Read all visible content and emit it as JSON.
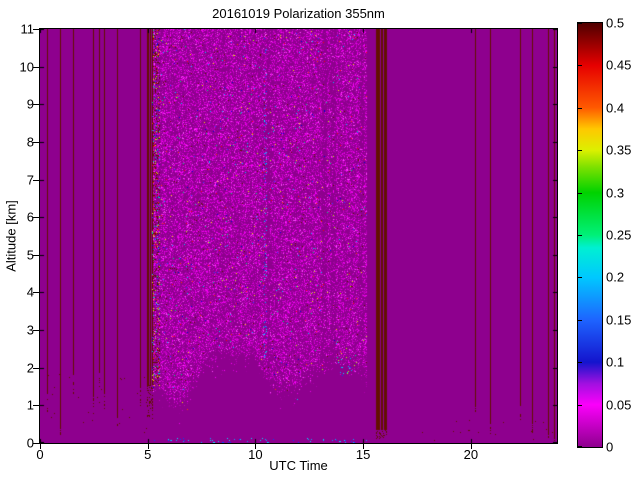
{
  "colors": {
    "figure_bg": "#ffffff",
    "text": "#000000",
    "axis": "#000000",
    "plot_bg": "#8e008e",
    "stripe": "#621000",
    "noise_magentas": [
      "#9b009b",
      "#ad00ad",
      "#c000c0",
      "#d400d4",
      "#e800e8",
      "#fc00fc",
      "#ff4cff"
    ],
    "bright_dots": [
      "#00c8ff",
      "#2244ff",
      "#0000dc",
      "#00e080",
      "#b4ff00",
      "#ffe000",
      "#ff3c00",
      "#ff0000"
    ],
    "blue_dots": [
      "#0044ff",
      "#00aaff",
      "#00e0ff"
    ]
  },
  "chart_data": {
    "type": "heatmap",
    "title": "20161019 Polarization 355nm",
    "xlabel": "UTC Time",
    "ylabel": "Altitude [km]",
    "x_axis": {
      "range": [
        0,
        24
      ],
      "ticks": [
        0,
        5,
        10,
        15,
        20
      ]
    },
    "y_axis": {
      "range": [
        0,
        11
      ],
      "ticks": [
        0,
        1,
        2,
        3,
        4,
        5,
        6,
        7,
        8,
        9,
        10,
        11
      ]
    },
    "colorbar": {
      "range": [
        0,
        0.5
      ],
      "tick_values": [
        0,
        0.05,
        0.1,
        0.15,
        0.2,
        0.25,
        0.3,
        0.35,
        0.4,
        0.45,
        0.5
      ],
      "tick_labels": [
        "0",
        "0.05",
        "0.1",
        "0.15",
        "0.2",
        "0.25",
        "0.3",
        "0.35",
        "0.4",
        "0.45",
        "0.5"
      ],
      "stops": [
        {
          "v": 0.0,
          "c": "#8e008e"
        },
        {
          "v": 0.05,
          "c": "#fb00fb"
        },
        {
          "v": 0.075,
          "c": "#a010e0"
        },
        {
          "v": 0.1,
          "c": "#1414cd"
        },
        {
          "v": 0.15,
          "c": "#1e64ff"
        },
        {
          "v": 0.2,
          "c": "#00c8ff"
        },
        {
          "v": 0.235,
          "c": "#00f0d2"
        },
        {
          "v": 0.25,
          "c": "#00f078"
        },
        {
          "v": 0.3,
          "c": "#00d200"
        },
        {
          "v": 0.33,
          "c": "#7de100"
        },
        {
          "v": 0.35,
          "c": "#dcf000"
        },
        {
          "v": 0.375,
          "c": "#ffc800"
        },
        {
          "v": 0.4,
          "c": "#ff5a00"
        },
        {
          "v": 0.45,
          "c": "#e60000"
        },
        {
          "v": 0.5,
          "c": "#500000"
        }
      ]
    },
    "background_value": 0,
    "seed": 1337,
    "features": {
      "stripes": [
        {
          "t": 0.33,
          "bottom": 1.3,
          "tail": 0.5
        },
        {
          "t": 0.95,
          "bottom": 0.45,
          "tail": 0.3
        },
        {
          "t": 1.52,
          "bottom": 1.8,
          "tail": 0.6
        },
        {
          "t": 2.45,
          "bottom": 1.25,
          "tail": 0.5
        },
        {
          "t": 2.72,
          "bottom": 1.85,
          "tail": 0.4
        },
        {
          "t": 2.97,
          "bottom": 1.3,
          "tail": 0.4
        },
        {
          "t": 3.56,
          "bottom": 0.7,
          "tail": 0.3
        },
        {
          "t": 4.62,
          "bottom": 1.45,
          "tail": 0.5
        },
        {
          "t": 20.2,
          "bottom": 0.95,
          "tail": 0.3
        },
        {
          "t": 20.9,
          "bottom": 0.5,
          "tail": 0.3
        },
        {
          "t": 22.3,
          "bottom": 1.0,
          "tail": 0.4
        },
        {
          "t": 22.85,
          "bottom": 0.5,
          "tail": 0.3
        },
        {
          "t": 23.6,
          "bottom": 0.2,
          "tail": 0.1
        },
        {
          "t": 23.85,
          "bottom": 0.15,
          "tail": 0.1
        }
      ],
      "bands": [
        {
          "t0": 4.95,
          "t1": 5.2,
          "bottom": 1.55,
          "tail": 0.9
        },
        {
          "t0": 15.58,
          "t1": 16.08,
          "bottom": 0.35,
          "tail": 0.25
        }
      ],
      "noise_region": {
        "t0": 5.2,
        "t1": 15.12,
        "density": 0.45,
        "fade_km": 0.5,
        "bright_prob": 0.02,
        "dark_prob": 0.012,
        "boundary": [
          [
            5.2,
            1.45
          ],
          [
            5.8,
            1.15
          ],
          [
            6.3,
            0.85
          ],
          [
            6.9,
            1.1
          ],
          [
            7.5,
            1.9
          ],
          [
            8.3,
            2.15
          ],
          [
            9.3,
            2.2
          ],
          [
            10.0,
            2.05
          ],
          [
            10.6,
            1.5
          ],
          [
            11.3,
            1.25
          ],
          [
            12.1,
            1.45
          ],
          [
            12.7,
            1.85
          ],
          [
            13.4,
            2.0
          ],
          [
            14.2,
            2.05
          ],
          [
            14.7,
            1.8
          ],
          [
            15.12,
            1.55
          ]
        ],
        "streaks": [
          {
            "t0": 10.5,
            "t1": 10.65,
            "f": 0.4
          },
          {
            "t0": 13.05,
            "t1": 13.3,
            "f": 0.45
          },
          {
            "t0": 13.5,
            "t1": 13.72,
            "f": 0.45
          },
          {
            "t0": 14.8,
            "t1": 15.0,
            "f": 0.55
          }
        ]
      },
      "edge_column": {
        "t0": 5.2,
        "t1": 5.52,
        "a0": 1.5,
        "prob_bright": 0.08,
        "prob_dark": 0.13
      },
      "blue_column": {
        "t0": 10.41,
        "t1": 10.49,
        "a0": 1.8,
        "a1": 10.8,
        "prob": 0.08
      },
      "cluster": {
        "t0": 13.8,
        "t1": 14.65,
        "a0": 1.8,
        "a1": 2.35,
        "prob": 0.05
      },
      "bottom_dots": {
        "t0": 5.3,
        "t1": 15.5,
        "a1": 0.12,
        "prob": 0.05
      },
      "left_scatter": {
        "t0": 0.3,
        "t1": 4.9,
        "a0": 0.3,
        "a1": 1.9,
        "prob": 0.0045
      },
      "right_scatter": {
        "t0": 16.2,
        "t1": 23.9,
        "a0": 0.05,
        "a1": 0.6,
        "prob": 0.004
      }
    }
  }
}
